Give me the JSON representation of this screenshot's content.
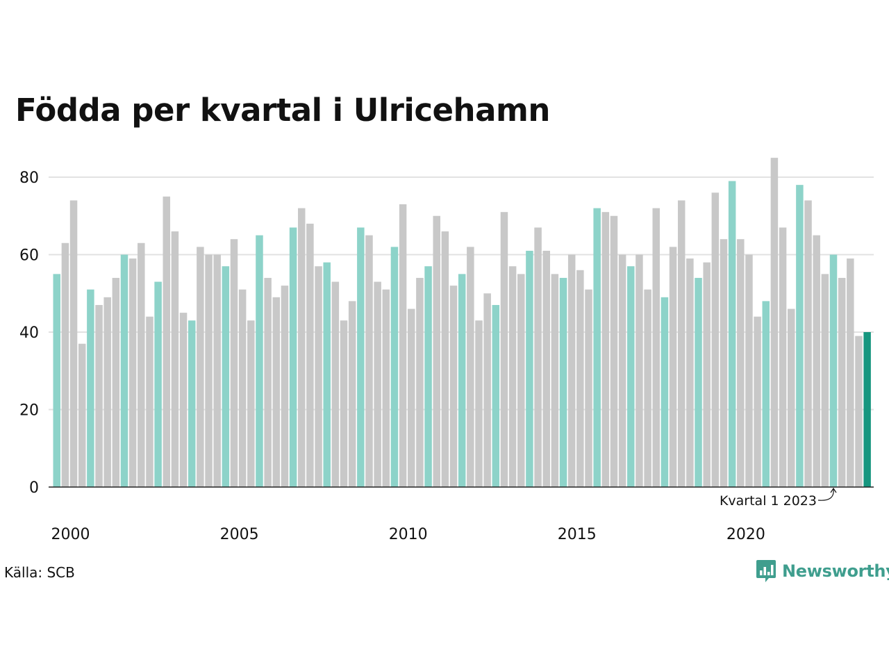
{
  "chart_data": {
    "type": "bar",
    "title": "Födda per kvartal i Ulricehamn",
    "xlabel": "",
    "ylabel": "",
    "ylim": [
      0,
      88
    ],
    "yticks": [
      0,
      20,
      40,
      60,
      80
    ],
    "xtick_labels": [
      "2000",
      "2005",
      "2010",
      "2015",
      "2020"
    ],
    "grid": true,
    "start_year": 2000,
    "values": [
      55,
      63,
      74,
      37,
      51,
      47,
      49,
      54,
      60,
      59,
      63,
      44,
      53,
      75,
      66,
      45,
      43,
      62,
      60,
      60,
      57,
      64,
      51,
      43,
      65,
      54,
      49,
      52,
      67,
      72,
      68,
      57,
      58,
      53,
      43,
      48,
      67,
      65,
      53,
      51,
      62,
      73,
      46,
      54,
      57,
      70,
      66,
      52,
      55,
      62,
      43,
      50,
      47,
      71,
      57,
      55,
      61,
      67,
      61,
      55,
      54,
      60,
      56,
      51,
      72,
      71,
      70,
      60,
      57,
      60,
      51,
      72,
      49,
      62,
      74,
      59,
      54,
      58,
      76,
      64,
      79,
      64,
      60,
      44,
      48,
      85,
      67,
      46,
      78,
      74,
      65,
      55,
      60,
      54,
      59,
      39,
      40
    ],
    "colors": {
      "q1": "#8dd3c9",
      "other": "#c8c8c8",
      "latest": "#17967f",
      "grid": "#e2e2e2",
      "axis": "#222222"
    },
    "annotation": {
      "text": "Kvartal 1 2023",
      "index": 92
    }
  },
  "footer": {
    "source": "Källa: SCB",
    "brand": "Newsworthy"
  }
}
